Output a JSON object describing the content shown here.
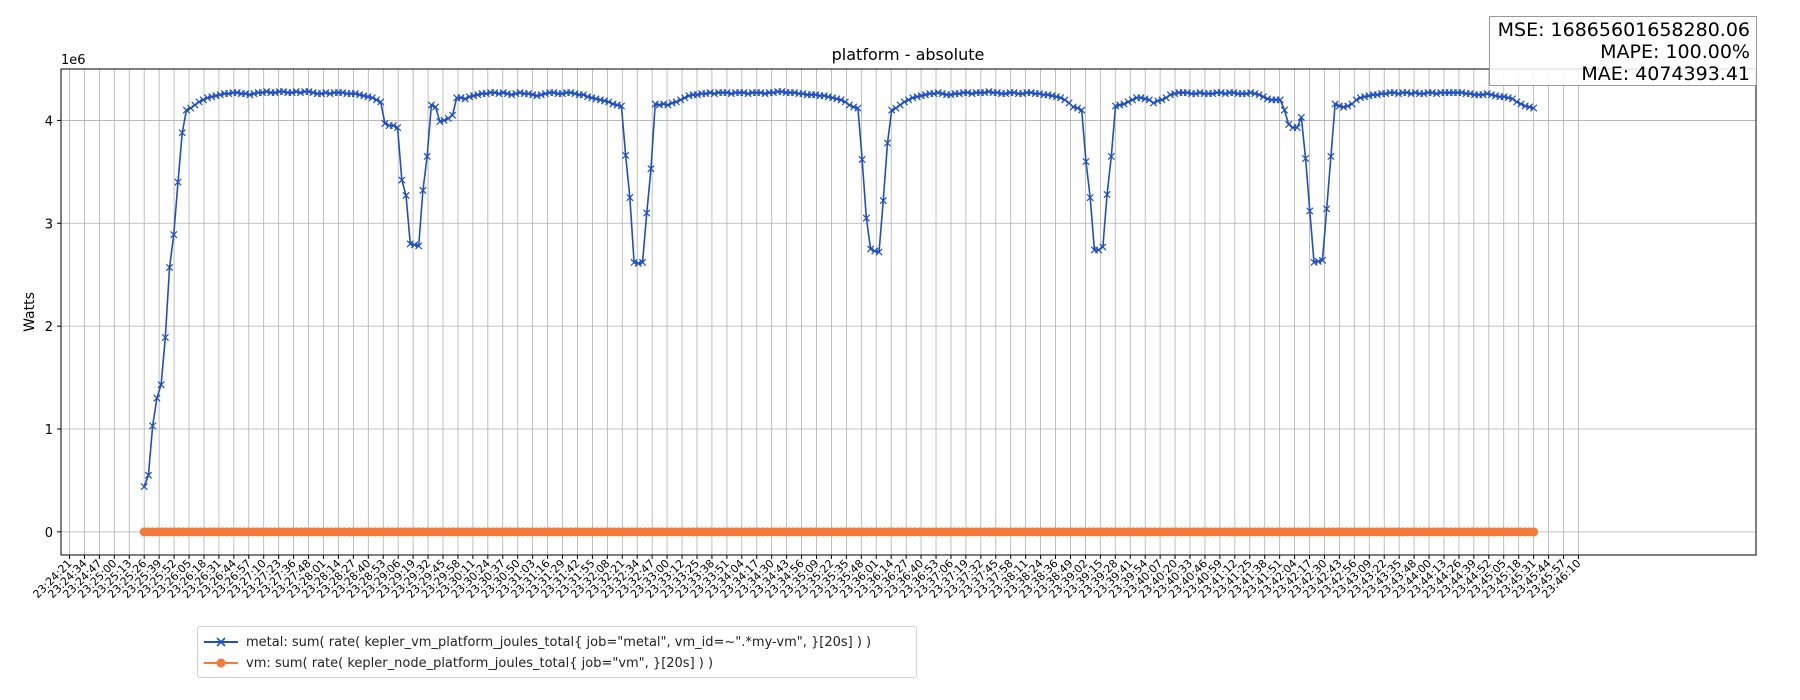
{
  "chart_data": {
    "type": "line",
    "title": "platform - absolute",
    "ylabel": "Watts",
    "y_offset_label": "1e6",
    "ylim": [
      -0.225,
      4.5
    ],
    "yticks": [
      0,
      1,
      2,
      3,
      4
    ],
    "grid": true,
    "legend_position": "bottom-left, below plot",
    "x_tick_labels": [
      "23:24:21",
      "23:24:34",
      "23:24:47",
      "23:25:00",
      "23:25:13",
      "23:25:26",
      "23:25:39",
      "23:25:52",
      "23:26:05",
      "23:26:18",
      "23:26:31",
      "23:26:44",
      "23:26:57",
      "23:27:10",
      "23:27:23",
      "23:27:36",
      "23:27:48",
      "23:28:01",
      "23:28:14",
      "23:28:27",
      "23:28:40",
      "23:28:53",
      "23:29:06",
      "23:29:19",
      "23:29:32",
      "23:29:45",
      "23:29:58",
      "23:30:11",
      "23:30:24",
      "23:30:37",
      "23:30:50",
      "23:31:03",
      "23:31:16",
      "23:31:29",
      "23:31:42",
      "23:31:55",
      "23:32:08",
      "23:32:21",
      "23:32:34",
      "23:32:47",
      "23:33:00",
      "23:33:12",
      "23:33:25",
      "23:33:38",
      "23:33:51",
      "23:34:04",
      "23:34:17",
      "23:34:30",
      "23:34:43",
      "23:34:56",
      "23:35:09",
      "23:35:22",
      "23:35:35",
      "23:35:48",
      "23:36:01",
      "23:36:14",
      "23:36:27",
      "23:36:40",
      "23:36:53",
      "23:37:06",
      "23:37:19",
      "23:37:32",
      "23:37:45",
      "23:37:58",
      "23:38:11",
      "23:38:24",
      "23:38:36",
      "23:38:49",
      "23:39:02",
      "23:39:15",
      "23:39:28",
      "23:39:41",
      "23:39:54",
      "23:40:07",
      "23:40:20",
      "23:40:33",
      "23:40:46",
      "23:40:59",
      "23:41:12",
      "23:41:25",
      "23:41:38",
      "23:41:51",
      "23:42:04",
      "23:42:17",
      "23:42:30",
      "23:42:43",
      "23:42:56",
      "23:43:09",
      "23:43:22",
      "23:43:35",
      "23:43:48",
      "23:44:00",
      "23:44:13",
      "23:44:26",
      "23:44:39",
      "23:44:52",
      "23:45:05",
      "23:45:18",
      "23:45:31",
      "23:45:44",
      "23:45:57",
      "23:46:10"
    ],
    "metrics": {
      "mse": "MSE: 16865601658280.06",
      "mape": "MAPE: 100.00%",
      "mae": "MAE: 4074393.41"
    },
    "series": [
      {
        "name": "metal: sum( rate( kepler_vm_platform_joules_total{ job=\"metal\", vm_id=~\".*my-vm\", }[20s] ) )",
        "color": "#1f4fbf",
        "marker": "x",
        "x_range": [
          "23:25:26",
          "23:45:31"
        ],
        "values": [
          0.44,
          0.55,
          1.03,
          1.3,
          1.43,
          1.89,
          2.57,
          2.89,
          3.4,
          3.88,
          4.1,
          4.12,
          4.15,
          4.18,
          4.2,
          4.22,
          4.23,
          4.24,
          4.25,
          4.26,
          4.26,
          4.27,
          4.27,
          4.26,
          4.26,
          4.25,
          4.26,
          4.27,
          4.27,
          4.28,
          4.27,
          4.27,
          4.28,
          4.28,
          4.27,
          4.27,
          4.28,
          4.27,
          4.28,
          4.28,
          4.27,
          4.26,
          4.26,
          4.27,
          4.26,
          4.27,
          4.27,
          4.27,
          4.26,
          4.26,
          4.26,
          4.25,
          4.24,
          4.23,
          4.22,
          4.2,
          4.18,
          3.97,
          3.95,
          3.95,
          3.93,
          3.42,
          3.27,
          2.8,
          2.79,
          2.78,
          3.32,
          3.65,
          4.15,
          4.13,
          3.99,
          4.0,
          4.02,
          4.05,
          4.22,
          4.22,
          4.21,
          4.23,
          4.24,
          4.25,
          4.26,
          4.26,
          4.27,
          4.27,
          4.26,
          4.27,
          4.26,
          4.25,
          4.26,
          4.27,
          4.26,
          4.26,
          4.25,
          4.24,
          4.25,
          4.26,
          4.27,
          4.27,
          4.26,
          4.26,
          4.27,
          4.27,
          4.26,
          4.25,
          4.25,
          4.23,
          4.22,
          4.21,
          4.2,
          4.19,
          4.18,
          4.16,
          4.15,
          4.14,
          3.66,
          3.25,
          2.62,
          2.61,
          2.62,
          3.1,
          3.53,
          4.16,
          4.15,
          4.16,
          4.15,
          4.17,
          4.18,
          4.2,
          4.22,
          4.24,
          4.25,
          4.25,
          4.26,
          4.26,
          4.27,
          4.26,
          4.27,
          4.27,
          4.27,
          4.26,
          4.27,
          4.27,
          4.27,
          4.26,
          4.27,
          4.27,
          4.27,
          4.26,
          4.27,
          4.27,
          4.28,
          4.28,
          4.27,
          4.27,
          4.27,
          4.26,
          4.26,
          4.25,
          4.25,
          4.25,
          4.24,
          4.24,
          4.23,
          4.22,
          4.21,
          4.2,
          4.18,
          4.15,
          4.13,
          4.12,
          3.62,
          3.05,
          2.75,
          2.73,
          2.72,
          3.22,
          3.78,
          4.1,
          4.12,
          4.15,
          4.18,
          4.2,
          4.22,
          4.23,
          4.24,
          4.25,
          4.26,
          4.26,
          4.27,
          4.26,
          4.25,
          4.25,
          4.26,
          4.26,
          4.27,
          4.27,
          4.26,
          4.27,
          4.27,
          4.27,
          4.28,
          4.27,
          4.27,
          4.26,
          4.26,
          4.27,
          4.27,
          4.26,
          4.26,
          4.27,
          4.27,
          4.26,
          4.26,
          4.25,
          4.25,
          4.24,
          4.23,
          4.22,
          4.2,
          4.17,
          4.13,
          4.12,
          4.1,
          3.6,
          3.25,
          2.74,
          2.74,
          2.77,
          3.28,
          3.65,
          4.14,
          4.15,
          4.16,
          4.18,
          4.2,
          4.22,
          4.22,
          4.21,
          4.2,
          4.17,
          4.19,
          4.2,
          4.22,
          4.25,
          4.26,
          4.27,
          4.27,
          4.27,
          4.26,
          4.26,
          4.27,
          4.26,
          4.26,
          4.26,
          4.27,
          4.27,
          4.26,
          4.27,
          4.27,
          4.26,
          4.26,
          4.26,
          4.27,
          4.26,
          4.25,
          4.23,
          4.21,
          4.2,
          4.2,
          4.2,
          4.1,
          3.96,
          3.93,
          3.93,
          4.03,
          3.63,
          3.12,
          2.62,
          2.63,
          2.64,
          3.14,
          3.65,
          4.16,
          4.14,
          4.13,
          4.14,
          4.16,
          4.2,
          4.22,
          4.23,
          4.24,
          4.25,
          4.25,
          4.26,
          4.26,
          4.27,
          4.27,
          4.26,
          4.27,
          4.27,
          4.26,
          4.27,
          4.26,
          4.26,
          4.27,
          4.27,
          4.26,
          4.27,
          4.27,
          4.27,
          4.27,
          4.27,
          4.27,
          4.26,
          4.26,
          4.25,
          4.25,
          4.25,
          4.26,
          4.25,
          4.24,
          4.23,
          4.23,
          4.22,
          4.21,
          4.18,
          4.16,
          4.14,
          4.13,
          4.12
        ]
      },
      {
        "name": "vm: sum( rate( kepler_node_platform_joules_total{ job=\"vm\", }[20s] ) )",
        "color": "#f37a3a",
        "marker": "o",
        "x_range": [
          "23:25:26",
          "23:45:31"
        ],
        "constant_value": 0,
        "point_count": 320
      }
    ]
  }
}
